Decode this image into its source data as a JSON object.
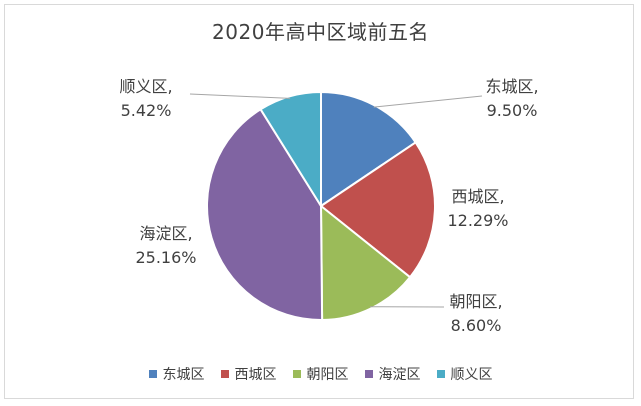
{
  "chart_data": {
    "type": "pie",
    "title": "2020年高中区域前五名",
    "legend_position": "bottom",
    "slices": [
      {
        "name": "东城区",
        "value": 9.5,
        "label": "9.50%",
        "color": "#4f81bd"
      },
      {
        "name": "西城区",
        "value": 12.29,
        "label": "12.29%",
        "color": "#c0504d"
      },
      {
        "name": "朝阳区",
        "value": 8.6,
        "label": "8.60%",
        "color": "#9bbb59"
      },
      {
        "name": "海淀区",
        "value": 25.16,
        "label": "25.16%",
        "color": "#8064a2"
      },
      {
        "name": "顺义区",
        "value": 5.42,
        "label": "5.42%",
        "color": "#4bacc6"
      }
    ]
  }
}
